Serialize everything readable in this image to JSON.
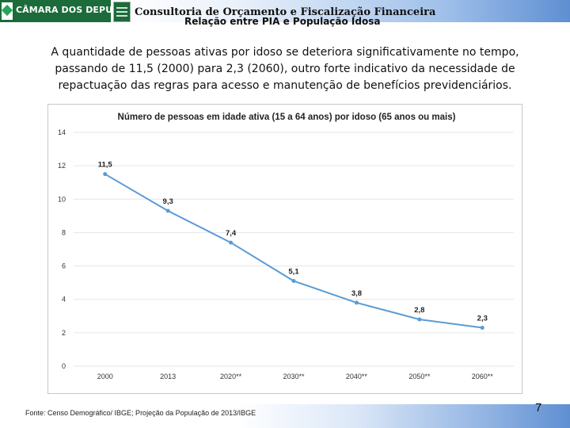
{
  "header": {
    "logo_text": "CÂMARA DOS DEPUTADOS",
    "title": "Consultoria de Orçamento e Fiscalização Financeira",
    "subtitle": "Relação entre PIA e População Idosa"
  },
  "body_text": "A quantidade de pessoas ativas por idoso se deteriora significativamente no tempo, passando de 11,5 (2000) para 2,3 (2060), outro forte indicativo da necessidade de repactuação das regras para acesso e manutenção de benefícios previdenciários.",
  "colors": {
    "line": "#5b9bd5",
    "grid": "#e6e6e6",
    "logo_green": "#1c6b3a"
  },
  "chart_data": {
    "type": "line",
    "title": "Número de pessoas em idade ativa (15 a 64 anos) por idoso (65 anos ou mais)",
    "categories": [
      "2000",
      "2013",
      "2020**",
      "2030**",
      "2040**",
      "2050**",
      "2060**"
    ],
    "values": [
      11.5,
      9.3,
      7.4,
      5.1,
      3.8,
      2.8,
      2.3
    ],
    "data_labels": [
      "11,5",
      "9,3",
      "7,4",
      "5,1",
      "3,8",
      "2,8",
      "2,3"
    ],
    "yticks": [
      "0",
      "2",
      "4",
      "6",
      "8",
      "10",
      "12",
      "14"
    ],
    "ylim": [
      0,
      14
    ],
    "xlabel": "",
    "ylabel": "",
    "grid": true,
    "legend": "none"
  },
  "footer": {
    "source": "Fonte: Censo Demográfico/ IBGE; Projeção da População de 2013/IBGE",
    "page_number": "7"
  }
}
